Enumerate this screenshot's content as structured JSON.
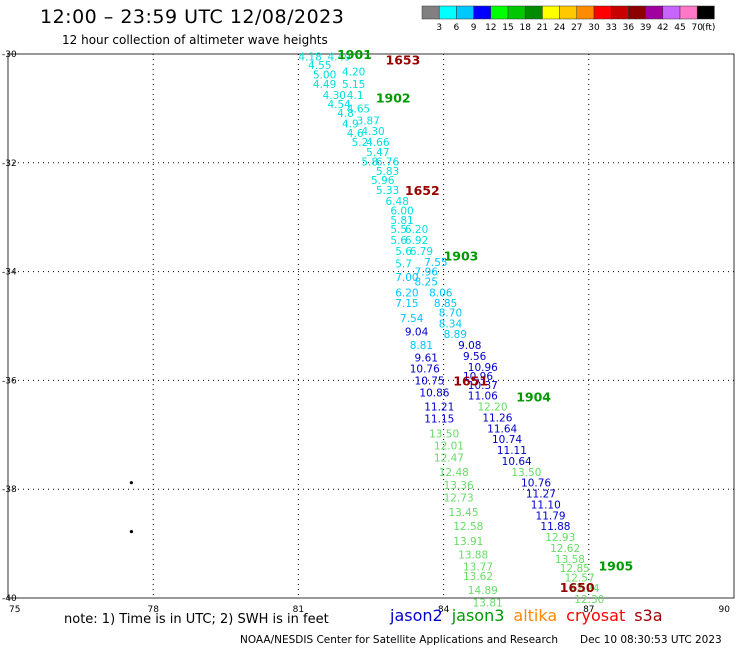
{
  "header": {
    "title": "12:00 – 23:59 UTC 12/08/2023",
    "subtitle": "12 hour collection of altimeter wave heights"
  },
  "colorbar": {
    "unit": "(ft)",
    "bins": [
      {
        "label": "",
        "color": "#808080"
      },
      {
        "label": "3",
        "color": "#00ffff"
      },
      {
        "label": "6",
        "color": "#00c8ff"
      },
      {
        "label": "9",
        "color": "#0000ff"
      },
      {
        "label": "12",
        "color": "#00ff00"
      },
      {
        "label": "15",
        "color": "#00c800"
      },
      {
        "label": "18",
        "color": "#008c00"
      },
      {
        "label": "21",
        "color": "#ffff00"
      },
      {
        "label": "24",
        "color": "#ffc800"
      },
      {
        "label": "27",
        "color": "#ff8c00"
      },
      {
        "label": "30",
        "color": "#ff0000"
      },
      {
        "label": "33",
        "color": "#c80000"
      },
      {
        "label": "36",
        "color": "#8c0000"
      },
      {
        "label": "39",
        "color": "#a000a0"
      },
      {
        "label": "42",
        "color": "#c864ff"
      },
      {
        "label": "45",
        "color": "#ff78c8"
      },
      {
        "label": "70",
        "color": "#000000"
      }
    ]
  },
  "note": "note: 1) Time is in UTC; 2) SWH is in feet",
  "satellites": [
    {
      "name": "jason2",
      "color": "#0000cc"
    },
    {
      "name": "jason3",
      "color": "#009900"
    },
    {
      "name": "altika",
      "color": "#ff8800"
    },
    {
      "name": "cryosat",
      "color": "#ff0000"
    },
    {
      "name": "s3a",
      "color": "#990000"
    }
  ],
  "footer": {
    "left": "NOAA/NESDIS Center for Satellite Applications and Research",
    "right": "Dec 10 08:30:53 UTC 2023"
  },
  "chart_data": {
    "type": "scatter",
    "title": "12:00 – 23:59 UTC 12/08/2023",
    "subtitle": "12 hour collection of altimeter wave heights",
    "xlim": [
      75,
      90
    ],
    "ylim": [
      -40,
      -30
    ],
    "x_ticks": [
      75,
      78,
      81,
      84,
      87,
      90
    ],
    "y_ticks": [
      -30,
      -32,
      -34,
      -36,
      -38,
      -40
    ],
    "grid": true,
    "unit": "ft",
    "time_labels": [
      {
        "label": "1901",
        "x": 81.8,
        "y": -30.0,
        "color": "#009900"
      },
      {
        "label": "1653",
        "x": 82.8,
        "y": -30.1,
        "color": "#990000"
      },
      {
        "label": "1902",
        "x": 82.6,
        "y": -30.8,
        "color": "#009900"
      },
      {
        "label": "1652",
        "x": 83.2,
        "y": -32.5,
        "color": "#990000"
      },
      {
        "label": "1903",
        "x": 84.0,
        "y": -33.7,
        "color": "#009900"
      },
      {
        "label": "1651",
        "x": 84.2,
        "y": -36.0,
        "color": "#990000"
      },
      {
        "label": "1904",
        "x": 85.5,
        "y": -36.3,
        "color": "#009900"
      },
      {
        "label": "1650",
        "x": 86.4,
        "y": -39.8,
        "color": "#990000"
      },
      {
        "label": "1905",
        "x": 87.2,
        "y": -39.4,
        "color": "#009900"
      }
    ],
    "series": [
      {
        "name": "track-1",
        "points": [
          {
            "x": 81.0,
            "y": -30.05,
            "v": "4.18",
            "c": "#00e0e0"
          },
          {
            "x": 81.6,
            "y": -30.05,
            "v": "4.49",
            "c": "#00e0e0"
          },
          {
            "x": 81.2,
            "y": -30.2,
            "v": "4.55",
            "c": "#00e0e0"
          },
          {
            "x": 81.9,
            "y": -30.32,
            "v": "4.20",
            "c": "#00e0e0"
          },
          {
            "x": 81.3,
            "y": -30.38,
            "v": "5.00",
            "c": "#00e0e0"
          },
          {
            "x": 81.3,
            "y": -30.55,
            "v": "4.49",
            "c": "#00e0e0"
          },
          {
            "x": 81.9,
            "y": -30.55,
            "v": "5.15",
            "c": "#00e0e0"
          },
          {
            "x": 81.5,
            "y": -30.75,
            "v": "4.30",
            "c": "#00e0e0"
          },
          {
            "x": 82.0,
            "y": -30.75,
            "v": "4.1",
            "c": "#00e0e0"
          },
          {
            "x": 81.6,
            "y": -30.92,
            "v": "4.54",
            "c": "#00e0e0"
          },
          {
            "x": 82.0,
            "y": -31.0,
            "v": "4.65",
            "c": "#00e0e0"
          },
          {
            "x": 81.8,
            "y": -31.08,
            "v": "4.8",
            "c": "#00e0e0"
          },
          {
            "x": 82.2,
            "y": -31.22,
            "v": "3.87",
            "c": "#00e0e0"
          },
          {
            "x": 81.9,
            "y": -31.28,
            "v": "4.9",
            "c": "#00e0e0"
          },
          {
            "x": 82.3,
            "y": -31.42,
            "v": "4.30",
            "c": "#00e0e0"
          },
          {
            "x": 82.0,
            "y": -31.45,
            "v": "4.6",
            "c": "#00e0e0"
          },
          {
            "x": 82.4,
            "y": -31.62,
            "v": "4.66",
            "c": "#00e0e0"
          },
          {
            "x": 82.1,
            "y": -31.62,
            "v": "5.2",
            "c": "#00e0e0"
          },
          {
            "x": 82.4,
            "y": -31.8,
            "v": "5.47",
            "c": "#00e0e0"
          },
          {
            "x": 82.6,
            "y": -31.98,
            "v": "6.76",
            "c": "#00e0e0"
          },
          {
            "x": 82.3,
            "y": -31.98,
            "v": "5.8",
            "c": "#00e0e0"
          },
          {
            "x": 82.6,
            "y": -32.15,
            "v": "5.83",
            "c": "#00e0e0"
          },
          {
            "x": 82.5,
            "y": -32.32,
            "v": "5.96",
            "c": "#00e0e0"
          },
          {
            "x": 82.6,
            "y": -32.5,
            "v": "5.33",
            "c": "#00e0e0"
          },
          {
            "x": 82.8,
            "y": -32.7,
            "v": "6.48",
            "c": "#00e0e0"
          },
          {
            "x": 82.9,
            "y": -32.88,
            "v": "6.00",
            "c": "#00e0e0"
          },
          {
            "x": 82.9,
            "y": -33.05,
            "v": "5.81",
            "c": "#00e0e0"
          },
          {
            "x": 82.9,
            "y": -33.22,
            "v": "5.5",
            "c": "#00e0e0"
          },
          {
            "x": 83.2,
            "y": -33.22,
            "v": "6.20",
            "c": "#00e0e0"
          },
          {
            "x": 83.2,
            "y": -33.42,
            "v": "6.92",
            "c": "#00e0e0"
          },
          {
            "x": 82.9,
            "y": -33.42,
            "v": "5.6",
            "c": "#00e0e0"
          },
          {
            "x": 83.0,
            "y": -33.62,
            "v": "5.6",
            "c": "#00e0e0"
          },
          {
            "x": 83.3,
            "y": -33.62,
            "v": "6.79",
            "c": "#00e0e0"
          },
          {
            "x": 83.6,
            "y": -33.82,
            "v": "7.55",
            "c": "#00c8ff"
          },
          {
            "x": 83.0,
            "y": -33.85,
            "v": "5.7",
            "c": "#00e0e0"
          },
          {
            "x": 83.4,
            "y": -34.0,
            "v": "7.96",
            "c": "#00c8ff"
          },
          {
            "x": 83.0,
            "y": -34.1,
            "v": "7.00",
            "c": "#00c8ff"
          },
          {
            "x": 83.4,
            "y": -34.18,
            "v": "8.25",
            "c": "#00c8ff"
          },
          {
            "x": 83.0,
            "y": -34.38,
            "v": "6.20",
            "c": "#00c8ff"
          },
          {
            "x": 83.7,
            "y": -34.38,
            "v": "8.06",
            "c": "#00c8ff"
          },
          {
            "x": 83.0,
            "y": -34.58,
            "v": "7.15",
            "c": "#00c8ff"
          },
          {
            "x": 83.8,
            "y": -34.58,
            "v": "8.85",
            "c": "#00c8ff"
          },
          {
            "x": 83.9,
            "y": -34.75,
            "v": "8.70",
            "c": "#00c8ff"
          },
          {
            "x": 83.1,
            "y": -34.85,
            "v": "7.54",
            "c": "#00c8ff"
          },
          {
            "x": 83.9,
            "y": -34.95,
            "v": "8.34",
            "c": "#00c8ff"
          },
          {
            "x": 83.2,
            "y": -35.1,
            "v": "9.04",
            "c": "#0000cc"
          },
          {
            "x": 84.0,
            "y": -35.15,
            "v": "8.89",
            "c": "#00c8ff"
          },
          {
            "x": 83.3,
            "y": -35.35,
            "v": "8.81",
            "c": "#00c8ff"
          },
          {
            "x": 84.3,
            "y": -35.35,
            "v": "9.08",
            "c": "#0000cc"
          },
          {
            "x": 83.4,
            "y": -35.58,
            "v": "9.61",
            "c": "#0000cc"
          },
          {
            "x": 84.4,
            "y": -35.55,
            "v": "9.56",
            "c": "#0000cc"
          },
          {
            "x": 84.5,
            "y": -35.75,
            "v": "10.96",
            "c": "#0000cc"
          },
          {
            "x": 83.3,
            "y": -35.78,
            "v": "10.76",
            "c": "#0000cc"
          },
          {
            "x": 84.4,
            "y": -35.92,
            "v": "10.96",
            "c": "#0000cc"
          },
          {
            "x": 83.4,
            "y": -36.0,
            "v": "10.75",
            "c": "#0000cc"
          },
          {
            "x": 84.5,
            "y": -36.08,
            "v": "10.37",
            "c": "#0000cc"
          },
          {
            "x": 83.5,
            "y": -36.22,
            "v": "10.86",
            "c": "#0000cc"
          },
          {
            "x": 84.5,
            "y": -36.28,
            "v": "11.06",
            "c": "#0000cc"
          },
          {
            "x": 83.6,
            "y": -36.48,
            "v": "11.21",
            "c": "#0000cc"
          },
          {
            "x": 84.7,
            "y": -36.48,
            "v": "12.20",
            "c": "#66dd66"
          },
          {
            "x": 83.6,
            "y": -36.7,
            "v": "11.15",
            "c": "#0000cc"
          },
          {
            "x": 84.8,
            "y": -36.68,
            "v": "11.26",
            "c": "#0000cc"
          },
          {
            "x": 84.9,
            "y": -36.88,
            "v": "11.64",
            "c": "#0000cc"
          },
          {
            "x": 83.7,
            "y": -36.98,
            "v": "13.50",
            "c": "#66dd66"
          },
          {
            "x": 85.0,
            "y": -37.08,
            "v": "10.74",
            "c": "#0000cc"
          },
          {
            "x": 83.8,
            "y": -37.2,
            "v": "12.01",
            "c": "#66dd66"
          },
          {
            "x": 85.1,
            "y": -37.28,
            "v": "11.11",
            "c": "#0000cc"
          },
          {
            "x": 83.8,
            "y": -37.42,
            "v": "12.47",
            "c": "#66dd66"
          },
          {
            "x": 85.2,
            "y": -37.48,
            "v": "10.64",
            "c": "#0000cc"
          },
          {
            "x": 83.9,
            "y": -37.68,
            "v": "12.48",
            "c": "#66dd66"
          },
          {
            "x": 85.4,
            "y": -37.68,
            "v": "13.50",
            "c": "#66dd66"
          },
          {
            "x": 85.6,
            "y": -37.88,
            "v": "10.76",
            "c": "#0000cc"
          },
          {
            "x": 84.0,
            "y": -37.92,
            "v": "13.36",
            "c": "#66dd66"
          },
          {
            "x": 85.7,
            "y": -38.08,
            "v": "11.27",
            "c": "#0000cc"
          },
          {
            "x": 84.0,
            "y": -38.15,
            "v": "12.73",
            "c": "#66dd66"
          },
          {
            "x": 85.8,
            "y": -38.28,
            "v": "11.10",
            "c": "#0000cc"
          },
          {
            "x": 84.1,
            "y": -38.42,
            "v": "13.45",
            "c": "#66dd66"
          },
          {
            "x": 85.9,
            "y": -38.48,
            "v": "11.79",
            "c": "#0000cc"
          },
          {
            "x": 84.2,
            "y": -38.68,
            "v": "12.58",
            "c": "#66dd66"
          },
          {
            "x": 86.0,
            "y": -38.68,
            "v": "11.88",
            "c": "#0000cc"
          },
          {
            "x": 86.1,
            "y": -38.88,
            "v": "12.93",
            "c": "#66dd66"
          },
          {
            "x": 84.2,
            "y": -38.95,
            "v": "13.91",
            "c": "#66dd66"
          },
          {
            "x": 86.2,
            "y": -39.08,
            "v": "12.62",
            "c": "#66dd66"
          },
          {
            "x": 84.3,
            "y": -39.2,
            "v": "13.88",
            "c": "#66dd66"
          },
          {
            "x": 86.3,
            "y": -39.28,
            "v": "13.58",
            "c": "#66dd66"
          },
          {
            "x": 84.4,
            "y": -39.42,
            "v": "13.77",
            "c": "#66dd66"
          },
          {
            "x": 86.4,
            "y": -39.45,
            "v": "12.85",
            "c": "#66dd66"
          },
          {
            "x": 84.4,
            "y": -39.6,
            "v": "13.62",
            "c": "#66dd66"
          },
          {
            "x": 86.5,
            "y": -39.62,
            "v": "12.57",
            "c": "#66dd66"
          },
          {
            "x": 84.5,
            "y": -39.85,
            "v": "14.89",
            "c": "#66dd66"
          },
          {
            "x": 86.6,
            "y": -39.82,
            "v": "12.24",
            "c": "#66dd66"
          },
          {
            "x": 84.6,
            "y": -40.08,
            "v": "13.81",
            "c": "#66dd66"
          },
          {
            "x": 86.7,
            "y": -40.02,
            "v": "12.30",
            "c": "#66dd66"
          }
        ]
      }
    ],
    "markers": [
      {
        "x": 77.55,
        "y": -37.88,
        "label": ""
      },
      {
        "x": 77.55,
        "y": -38.78,
        "label": ""
      }
    ]
  }
}
